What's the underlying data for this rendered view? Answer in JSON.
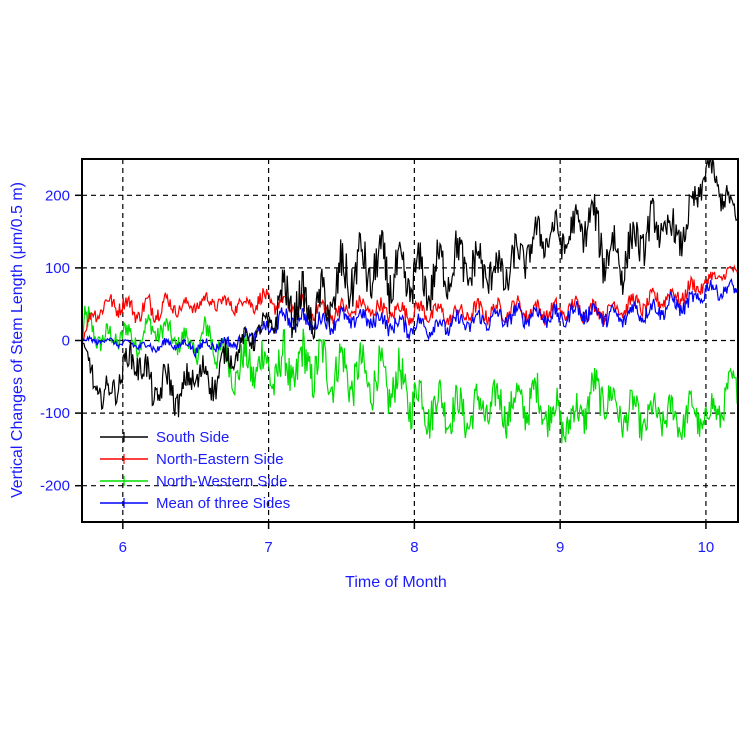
{
  "chart_data": {
    "type": "line",
    "title": "",
    "xlabel": "Time of Month",
    "ylabel": "Vertical Changes of Stem Length (μm/0.5 m)",
    "xlim": [
      5.72,
      10.22
    ],
    "ylim": [
      -250,
      250
    ],
    "xticks": [
      6,
      7,
      8,
      9,
      10
    ],
    "yticks": [
      -200,
      -100,
      0,
      100,
      200
    ],
    "xtick_labels": [
      "6",
      "7",
      "8",
      "9",
      "10"
    ],
    "ytick_labels": [
      "-200",
      "-100",
      "0",
      "100",
      "200"
    ],
    "grid": true,
    "legend_position": "lower-left",
    "series": [
      {
        "name": "South Side",
        "color": "#000000",
        "x": [
          5.72,
          5.8,
          5.9,
          6.0,
          6.1,
          6.2,
          6.3,
          6.4,
          6.5,
          6.6,
          6.7,
          6.8,
          6.9,
          7.0,
          7.1,
          7.2,
          7.3,
          7.4,
          7.5,
          7.6,
          7.7,
          7.8,
          7.9,
          8.0,
          8.1,
          8.2,
          8.3,
          8.4,
          8.5,
          8.6,
          8.7,
          8.8,
          8.9,
          9.0,
          9.1,
          9.2,
          9.3,
          9.4,
          9.5,
          9.6,
          9.7,
          9.8,
          9.9,
          10.0,
          10.1,
          10.2
        ],
        "y": [
          0,
          -60,
          -80,
          -40,
          -20,
          -70,
          -60,
          -80,
          -40,
          -60,
          -30,
          -10,
          10,
          20,
          60,
          50,
          40,
          50,
          80,
          100,
          100,
          100,
          80,
          90,
          80,
          100,
          110,
          100,
          100,
          90,
          110,
          130,
          150,
          140,
          150,
          170,
          130,
          110,
          130,
          150,
          160,
          140,
          170,
          240,
          210,
          170
        ],
        "amplitude": [
          5,
          25,
          25,
          25,
          30,
          30,
          30,
          25,
          30,
          30,
          25,
          15,
          20,
          20,
          40,
          40,
          35,
          45,
          50,
          45,
          45,
          45,
          45,
          40,
          40,
          40,
          40,
          40,
          40,
          35,
          35,
          30,
          30,
          30,
          30,
          35,
          45,
          45,
          35,
          35,
          35,
          30,
          30,
          25,
          25,
          20
        ]
      },
      {
        "name": "North-Eastern Side",
        "color": "#ff0000",
        "x": [
          5.72,
          5.8,
          5.9,
          6.0,
          6.1,
          6.2,
          6.3,
          6.4,
          6.5,
          6.6,
          6.7,
          6.8,
          6.9,
          7.0,
          7.1,
          7.2,
          7.3,
          7.4,
          7.5,
          7.6,
          7.7,
          7.8,
          7.9,
          8.0,
          8.1,
          8.2,
          8.3,
          8.4,
          8.5,
          8.6,
          8.7,
          8.8,
          8.9,
          9.0,
          9.1,
          9.2,
          9.3,
          9.4,
          9.5,
          9.6,
          9.7,
          9.8,
          9.9,
          10.0,
          10.1,
          10.2
        ],
        "y": [
          0,
          40,
          50,
          50,
          40,
          45,
          50,
          45,
          50,
          55,
          50,
          50,
          55,
          55,
          50,
          45,
          45,
          40,
          40,
          45,
          45,
          40,
          40,
          40,
          40,
          35,
          35,
          40,
          40,
          40,
          45,
          40,
          40,
          40,
          45,
          40,
          40,
          45,
          50,
          50,
          60,
          60,
          70,
          80,
          90,
          95
        ],
        "amplitude": [
          5,
          15,
          15,
          15,
          15,
          20,
          15,
          10,
          12,
          12,
          12,
          12,
          15,
          15,
          15,
          15,
          15,
          15,
          15,
          15,
          15,
          15,
          15,
          15,
          15,
          15,
          15,
          15,
          15,
          15,
          15,
          15,
          15,
          15,
          15,
          15,
          15,
          15,
          15,
          15,
          15,
          15,
          15,
          12,
          10,
          10
        ]
      },
      {
        "name": "North-Western Side",
        "color": "#00dd00",
        "x": [
          5.72,
          5.8,
          5.9,
          6.0,
          6.1,
          6.2,
          6.3,
          6.4,
          6.5,
          6.6,
          6.7,
          6.8,
          6.9,
          7.0,
          7.1,
          7.2,
          7.3,
          7.4,
          7.5,
          7.6,
          7.7,
          7.8,
          7.9,
          8.0,
          8.1,
          8.2,
          8.3,
          8.4,
          8.5,
          8.6,
          8.7,
          8.8,
          8.9,
          9.0,
          9.1,
          9.2,
          9.3,
          9.4,
          9.5,
          9.6,
          9.7,
          9.8,
          9.9,
          10.0,
          10.1,
          10.2
        ],
        "y": [
          20,
          10,
          0,
          10,
          0,
          20,
          10,
          0,
          -10,
          10,
          -30,
          -40,
          -30,
          -40,
          -40,
          -40,
          -30,
          -40,
          -40,
          -50,
          -50,
          -60,
          -60,
          -80,
          -90,
          -90,
          -100,
          -100,
          -90,
          -90,
          -90,
          -80,
          -90,
          -110,
          -110,
          -80,
          -70,
          -100,
          -100,
          -110,
          -100,
          -110,
          -100,
          -110,
          -90,
          -60
        ],
        "amplitude": [
          40,
          20,
          20,
          20,
          20,
          20,
          20,
          20,
          20,
          30,
          30,
          35,
          40,
          40,
          45,
          45,
          45,
          40,
          40,
          40,
          40,
          40,
          40,
          40,
          40,
          35,
          35,
          35,
          35,
          35,
          35,
          35,
          35,
          35,
          35,
          35,
          35,
          30,
          30,
          30,
          30,
          30,
          30,
          30,
          30,
          25
        ]
      },
      {
        "name": "Mean of three Sides",
        "color": "#0000ff",
        "x": [
          5.72,
          5.8,
          5.9,
          6.0,
          6.1,
          6.2,
          6.3,
          6.4,
          6.5,
          6.6,
          6.7,
          6.8,
          6.9,
          7.0,
          7.1,
          7.2,
          7.3,
          7.4,
          7.5,
          7.6,
          7.7,
          7.8,
          7.9,
          8.0,
          8.1,
          8.2,
          8.3,
          8.4,
          8.5,
          8.6,
          8.7,
          8.8,
          8.9,
          9.0,
          9.1,
          9.2,
          9.3,
          9.4,
          9.5,
          9.6,
          9.7,
          9.8,
          9.9,
          10.0,
          10.1,
          10.2
        ],
        "y": [
          0,
          0,
          0,
          -5,
          -5,
          -10,
          -5,
          -5,
          -10,
          -5,
          -5,
          0,
          10,
          15,
          30,
          30,
          25,
          25,
          30,
          30,
          30,
          25,
          20,
          20,
          20,
          20,
          25,
          25,
          30,
          30,
          35,
          35,
          35,
          30,
          40,
          40,
          35,
          30,
          40,
          40,
          45,
          50,
          50,
          70,
          70,
          70
        ],
        "amplitude": [
          3,
          5,
          5,
          5,
          8,
          8,
          8,
          8,
          10,
          10,
          10,
          10,
          12,
          12,
          15,
          15,
          15,
          15,
          15,
          15,
          15,
          15,
          15,
          15,
          15,
          15,
          15,
          15,
          15,
          15,
          15,
          15,
          15,
          15,
          15,
          15,
          15,
          15,
          15,
          15,
          15,
          15,
          15,
          15,
          12,
          12
        ]
      }
    ]
  }
}
